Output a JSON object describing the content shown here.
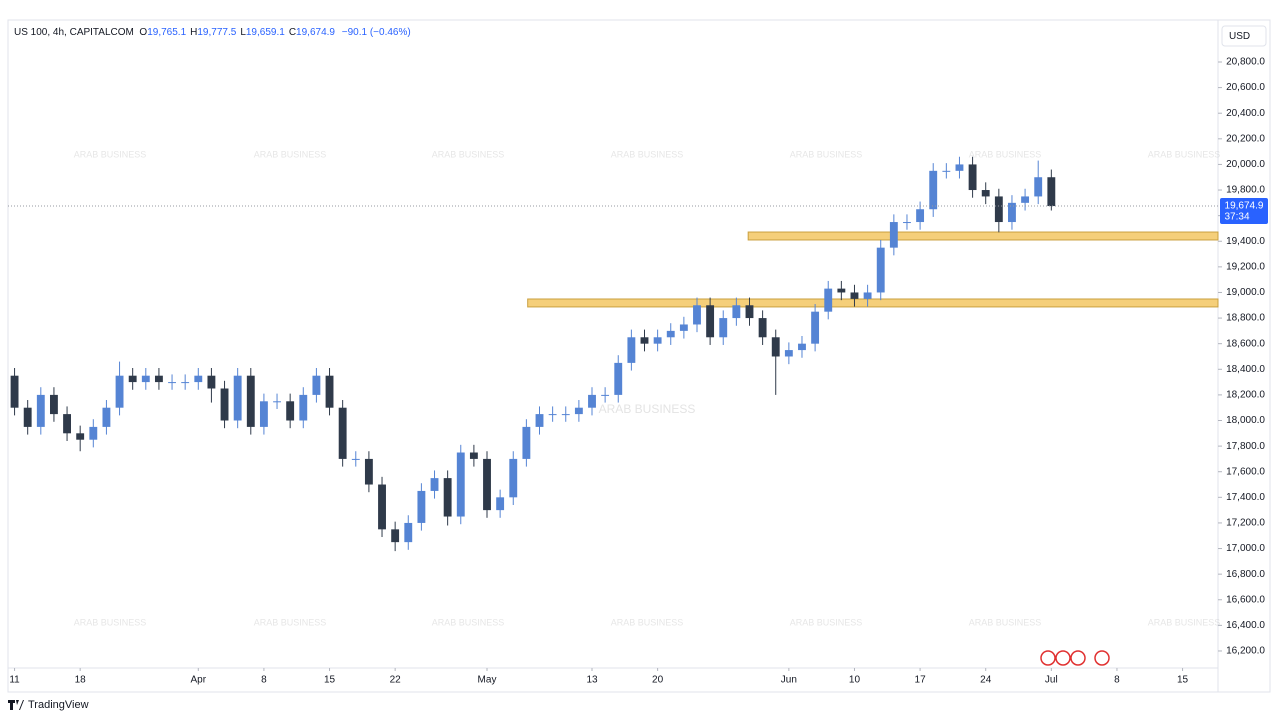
{
  "chart_data": {
    "type": "candlestick",
    "header": {
      "symbol": "US 100, 4h, CAPITALCOM",
      "fields": [
        {
          "key": "O",
          "value": "19,765.1"
        },
        {
          "key": "H",
          "value": "19,777.5"
        },
        {
          "key": "L",
          "value": "19,659.1"
        },
        {
          "key": "C",
          "value": "19,674.9"
        }
      ],
      "change": "−90.1 (−0.46%)"
    },
    "currency": "USD",
    "price_label": "19,674.9",
    "countdown": "37:34",
    "watermark": "ARAB BUSINESS",
    "brand": "TradingView",
    "up_color": "#5584d4",
    "down_color": "#2f3a4a",
    "zone_color": "#f5cf7a",
    "open": [
      18350,
      18100,
      17950,
      18200,
      18050,
      17900,
      17850,
      17950,
      18100,
      18350,
      18300,
      18350,
      18300,
      18300,
      18300,
      18350,
      18250,
      18000,
      18350,
      17950,
      18150,
      18150,
      18000,
      18200,
      18350,
      18100,
      17700,
      17700,
      17500,
      17150,
      17050,
      17200,
      17450,
      17550,
      17250,
      17750,
      17700,
      17300,
      17400,
      17700,
      17950,
      18050,
      18050,
      18050,
      18100,
      18200,
      18200,
      18450,
      18650,
      18600,
      18650,
      18700,
      18750,
      18900,
      18650,
      18800,
      18900,
      18800,
      18650,
      18500,
      18550,
      18600,
      18850,
      19030,
      19000,
      18950,
      19000,
      19350,
      19550,
      19550,
      19650,
      19950,
      19950,
      20000,
      19800,
      19750,
      19550,
      19700,
      19750,
      19900
    ],
    "high": [
      18410,
      18160,
      18260,
      18260,
      18110,
      17960,
      18010,
      18160,
      18460,
      18410,
      18410,
      18410,
      18360,
      18360,
      18410,
      18410,
      18310,
      18410,
      18410,
      18210,
      18210,
      18210,
      18260,
      18410,
      18410,
      18160,
      17760,
      17760,
      17560,
      17210,
      17260,
      17510,
      17610,
      17610,
      17810,
      17810,
      17760,
      17460,
      17760,
      18010,
      18110,
      18110,
      18110,
      18160,
      18260,
      18260,
      18510,
      18710,
      18710,
      18710,
      18760,
      18810,
      18960,
      18960,
      18860,
      18960,
      18960,
      18860,
      18710,
      18610,
      18660,
      18910,
      19090,
      19090,
      19060,
      19060,
      19410,
      19610,
      19610,
      19710,
      20010,
      20010,
      20060,
      20060,
      19860,
      19810,
      19760,
      19810,
      20030,
      19960
    ],
    "low": [
      18040,
      17890,
      17890,
      17990,
      17840,
      17760,
      17790,
      17890,
      18040,
      18240,
      18240,
      18240,
      18240,
      18240,
      18240,
      18140,
      17940,
      17940,
      17890,
      17890,
      18090,
      17940,
      17940,
      18140,
      18040,
      17640,
      17640,
      17440,
      17090,
      16980,
      16990,
      17140,
      17390,
      17180,
      17190,
      17640,
      17240,
      17240,
      17340,
      17640,
      17890,
      17990,
      17990,
      17990,
      18040,
      18140,
      18140,
      18390,
      18540,
      18540,
      18590,
      18640,
      18690,
      18590,
      18590,
      18740,
      18740,
      18590,
      18200,
      18440,
      18490,
      18540,
      18790,
      18940,
      18890,
      18890,
      18940,
      19290,
      19490,
      19490,
      19590,
      19890,
      19890,
      19740,
      19690,
      19470,
      19490,
      19640,
      19690,
      19640
    ],
    "close": [
      18100,
      17950,
      18200,
      18050,
      17900,
      17850,
      17950,
      18100,
      18350,
      18300,
      18350,
      18300,
      18300,
      18300,
      18350,
      18250,
      18000,
      18350,
      17950,
      18150,
      18150,
      18000,
      18200,
      18350,
      18100,
      17700,
      17700,
      17500,
      17150,
      17050,
      17200,
      17450,
      17550,
      17250,
      17750,
      17700,
      17300,
      17400,
      17700,
      17950,
      18050,
      18050,
      18050,
      18100,
      18200,
      18200,
      18450,
      18650,
      18600,
      18650,
      18700,
      18750,
      18900,
      18650,
      18800,
      18900,
      18800,
      18650,
      18500,
      18550,
      18600,
      18850,
      19030,
      19000,
      18950,
      19000,
      19350,
      19550,
      19550,
      19650,
      19950,
      19950,
      20000,
      19800,
      19750,
      19550,
      19700,
      19750,
      19900,
      19674.9
    ],
    "zones": [
      {
        "low": 19410,
        "high": 19472,
        "start": 55.9
      },
      {
        "low": 18887,
        "high": 18949,
        "start": 39.1
      }
    ],
    "xlim": [
      -0.5,
      91.7
    ],
    "ylim": [
      16067,
      21128
    ],
    "xticks": [
      {
        "value": 0,
        "label": "11"
      },
      {
        "value": 5,
        "label": "18"
      },
      {
        "value": 14,
        "label": "Apr"
      },
      {
        "value": 19,
        "label": "8"
      },
      {
        "value": 24,
        "label": "15"
      },
      {
        "value": 29,
        "label": "22"
      },
      {
        "value": 36,
        "label": "May"
      },
      {
        "value": 44,
        "label": "13"
      },
      {
        "value": 49,
        "label": "20"
      },
      {
        "value": 59,
        "label": "Jun"
      },
      {
        "value": 64,
        "label": "10"
      },
      {
        "value": 69,
        "label": "17"
      },
      {
        "value": 74,
        "label": "24"
      },
      {
        "value": 79,
        "label": "Jul"
      },
      {
        "value": 84,
        "label": "8"
      },
      {
        "value": 89,
        "label": "15"
      }
    ],
    "yticks": [
      {
        "value": 16200,
        "label": "16,200.0"
      },
      {
        "value": 16400,
        "label": "16,400.0"
      },
      {
        "value": 16600,
        "label": "16,600.0"
      },
      {
        "value": 16800,
        "label": "16,800.0"
      },
      {
        "value": 17000,
        "label": "17,000.0"
      },
      {
        "value": 17200,
        "label": "17,200.0"
      },
      {
        "value": 17400,
        "label": "17,400.0"
      },
      {
        "value": 17600,
        "label": "17,600.0"
      },
      {
        "value": 17800,
        "label": "17,800.0"
      },
      {
        "value": 18000,
        "label": "18,000.0"
      },
      {
        "value": 18200,
        "label": "18,200.0"
      },
      {
        "value": 18400,
        "label": "18,400.0"
      },
      {
        "value": 18600,
        "label": "18,600.0"
      },
      {
        "value": 18800,
        "label": "18,800.0"
      },
      {
        "value": 19000,
        "label": "19,000.0"
      },
      {
        "value": 19200,
        "label": "19,200.0"
      },
      {
        "value": 19400,
        "label": "19,400.0"
      },
      {
        "value": 19600,
        "label": "19,600.0"
      },
      {
        "value": 19800,
        "label": "19,800.0"
      },
      {
        "value": 20000,
        "label": "20,000.0"
      },
      {
        "value": 20200,
        "label": "20,200.0"
      },
      {
        "value": 20400,
        "label": "20,400.0"
      },
      {
        "value": 20600,
        "label": "20,600.0"
      },
      {
        "value": 20800,
        "label": "20,800.0"
      }
    ]
  }
}
